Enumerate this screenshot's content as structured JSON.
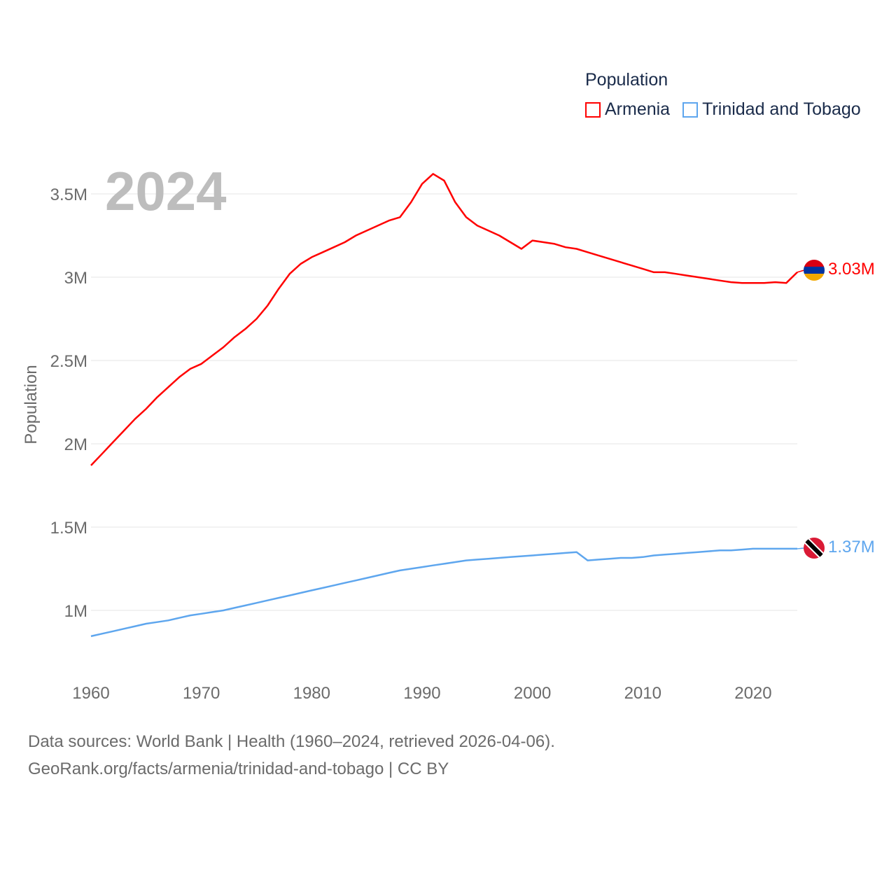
{
  "chart_data": {
    "type": "line",
    "title": "",
    "legend_title": "Population",
    "legend_position": "top-right",
    "xlabel": "",
    "ylabel": "Population",
    "year_watermark": "2024",
    "xlim": [
      1960,
      2024
    ],
    "ylim": [
      0.75,
      3.75
    ],
    "x_ticks": [
      "1960",
      "1970",
      "1980",
      "1990",
      "2000",
      "2010",
      "2020"
    ],
    "y_ticks": [
      {
        "value": 1.0,
        "label": "1M"
      },
      {
        "value": 1.5,
        "label": "1.5M"
      },
      {
        "value": 2.0,
        "label": "2M"
      },
      {
        "value": 2.5,
        "label": "2.5M"
      },
      {
        "value": 3.0,
        "label": "3M"
      },
      {
        "value": 3.5,
        "label": "3.5M"
      }
    ],
    "grid": true,
    "x_start": 1960,
    "series": [
      {
        "name": "Armenia",
        "color": "#ff0000",
        "end_label": "3.03M",
        "flag": "armenia-flag",
        "values": [
          1.87,
          1.94,
          2.01,
          2.08,
          2.15,
          2.21,
          2.28,
          2.34,
          2.4,
          2.45,
          2.48,
          2.53,
          2.58,
          2.64,
          2.69,
          2.75,
          2.83,
          2.93,
          3.02,
          3.08,
          3.12,
          3.15,
          3.18,
          3.21,
          3.25,
          3.28,
          3.31,
          3.34,
          3.36,
          3.45,
          3.56,
          3.62,
          3.58,
          3.45,
          3.36,
          3.31,
          3.28,
          3.25,
          3.21,
          3.17,
          3.22,
          3.21,
          3.2,
          3.18,
          3.17,
          3.15,
          3.13,
          3.11,
          3.09,
          3.07,
          3.05,
          3.03,
          3.03,
          3.02,
          3.01,
          3.0,
          2.99,
          2.98,
          2.97,
          2.965,
          2.965,
          2.965,
          2.97,
          2.965,
          3.03
        ]
      },
      {
        "name": "Trinidad and Tobago",
        "color": "#5ea6ee",
        "end_label": "1.37M",
        "flag": "trinidad-and-tobago-flag",
        "values": [
          0.845,
          0.86,
          0.875,
          0.89,
          0.905,
          0.92,
          0.93,
          0.94,
          0.955,
          0.97,
          0.98,
          0.99,
          1.0,
          1.015,
          1.03,
          1.045,
          1.06,
          1.075,
          1.09,
          1.105,
          1.12,
          1.135,
          1.15,
          1.165,
          1.18,
          1.195,
          1.21,
          1.225,
          1.24,
          1.25,
          1.26,
          1.27,
          1.28,
          1.29,
          1.3,
          1.305,
          1.31,
          1.315,
          1.32,
          1.325,
          1.33,
          1.335,
          1.34,
          1.345,
          1.35,
          1.3,
          1.305,
          1.31,
          1.315,
          1.315,
          1.32,
          1.33,
          1.335,
          1.34,
          1.345,
          1.35,
          1.355,
          1.36,
          1.36,
          1.365,
          1.37,
          1.37,
          1.37,
          1.37,
          1.37
        ]
      }
    ]
  },
  "footer": {
    "line1": "Data sources: World Bank | Health (1960–2024, retrieved 2026-04-06).",
    "line2": "GeoRank.org/facts/armenia/trinidad-and-tobago | CC BY"
  }
}
